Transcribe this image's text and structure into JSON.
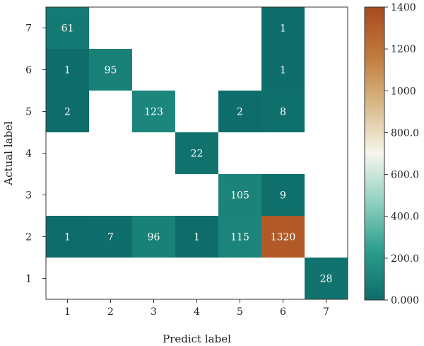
{
  "chart_data": {
    "type": "heatmap",
    "title": "",
    "xlabel": "Predict label",
    "ylabel": "Actual label",
    "x_categories": [
      "1",
      "2",
      "3",
      "4",
      "5",
      "6",
      "7"
    ],
    "y_categories": [
      "1",
      "2",
      "3",
      "4",
      "5",
      "6",
      "7"
    ],
    "cells": [
      {
        "actual": "7",
        "predict": "1",
        "value": 61
      },
      {
        "actual": "7",
        "predict": "6",
        "value": 1
      },
      {
        "actual": "6",
        "predict": "1",
        "value": 1
      },
      {
        "actual": "6",
        "predict": "2",
        "value": 95
      },
      {
        "actual": "6",
        "predict": "6",
        "value": 1
      },
      {
        "actual": "5",
        "predict": "1",
        "value": 2
      },
      {
        "actual": "5",
        "predict": "3",
        "value": 123
      },
      {
        "actual": "5",
        "predict": "5",
        "value": 2
      },
      {
        "actual": "5",
        "predict": "6",
        "value": 8
      },
      {
        "actual": "4",
        "predict": "4",
        "value": 22
      },
      {
        "actual": "3",
        "predict": "5",
        "value": 105
      },
      {
        "actual": "3",
        "predict": "6",
        "value": 9
      },
      {
        "actual": "2",
        "predict": "1",
        "value": 1
      },
      {
        "actual": "2",
        "predict": "2",
        "value": 7
      },
      {
        "actual": "2",
        "predict": "3",
        "value": 96
      },
      {
        "actual": "2",
        "predict": "4",
        "value": 1
      },
      {
        "actual": "2",
        "predict": "5",
        "value": 115
      },
      {
        "actual": "2",
        "predict": "6",
        "value": 1320
      },
      {
        "actual": "1",
        "predict": "7",
        "value": 28
      }
    ],
    "colorbar": {
      "range": [
        0,
        1400
      ],
      "ticks": [
        {
          "value": 0,
          "label": "0.000"
        },
        {
          "value": 200,
          "label": "200.0"
        },
        {
          "value": 400,
          "label": "400.0"
        },
        {
          "value": 600,
          "label": "600.0"
        },
        {
          "value": 800,
          "label": "800.0"
        },
        {
          "value": 1000,
          "label": "1000"
        },
        {
          "value": 1200,
          "label": "1200"
        },
        {
          "value": 1400,
          "label": "1400"
        }
      ],
      "colors": [
        "#0e6d6a",
        "#2a9d8c",
        "#8fd0c1",
        "#f6f6ec",
        "#d8b988",
        "#c17a3c",
        "#a84a1e"
      ]
    },
    "grid": false
  }
}
